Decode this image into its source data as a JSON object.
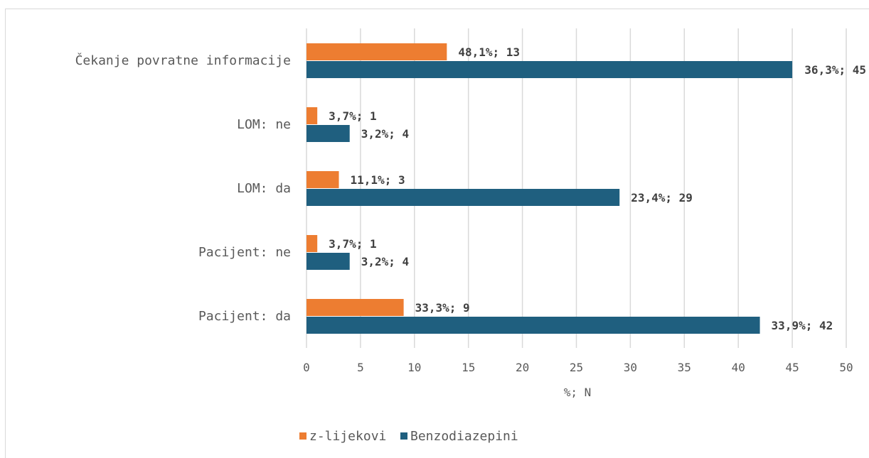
{
  "chart_data": {
    "type": "bar",
    "orientation": "horizontal",
    "categories": [
      "Čekanje povratne informacije",
      "LOM: ne",
      "LOM: da",
      "Pacijent: ne",
      "Pacijent: da"
    ],
    "series": [
      {
        "name": "z-lijekovi",
        "color": "#ed7d31",
        "values": [
          13,
          1,
          3,
          1,
          9
        ],
        "labels": [
          "48,1%; 13",
          "3,7%; 1",
          "11,1%; 3",
          "3,7%; 1",
          "33,3%; 9"
        ]
      },
      {
        "name": "Benzodiazepini",
        "color": "#1f5f7f",
        "values": [
          45,
          4,
          29,
          4,
          42
        ],
        "labels": [
          "36,3%; 45",
          "3,2%; 4",
          "23,4%; 29",
          "3,2%; 4",
          "33,9%; 42"
        ]
      }
    ],
    "xlabel": "%; N",
    "xlim": [
      0,
      50
    ],
    "xticks": [
      "0",
      "5",
      "10",
      "15",
      "20",
      "25",
      "30",
      "35",
      "40",
      "45",
      "50"
    ],
    "grid": true,
    "legend": "bottom"
  }
}
